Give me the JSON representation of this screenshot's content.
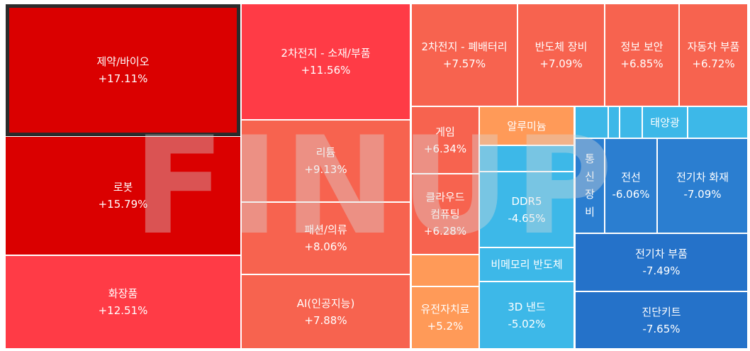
{
  "chart_data": {
    "type": "treemap",
    "colors": {
      "up_strong": "#DA0000",
      "up_mid": "#FF3B46",
      "up_soft": "#F7634F",
      "up_light": "#FF9A58",
      "down_light": "#3DB8E8",
      "down_mid": "#2B7ED0",
      "down_strong": "#2572C9",
      "watermark": "#d9d9d9"
    },
    "watermark": "FINUP",
    "cells": [
      {
        "label": "제약/바이오",
        "value": "+17.11%",
        "change": 17.11,
        "selected": true
      },
      {
        "label": "로봇",
        "value": "+15.79%",
        "change": 15.79
      },
      {
        "label": "화장품",
        "value": "+12.51%",
        "change": 12.51
      },
      {
        "label": "2차전지 - 소재/부품",
        "value": "+11.56%",
        "change": 11.56
      },
      {
        "label": "리튬",
        "value": "+9.13%",
        "change": 9.13
      },
      {
        "label": "패션/의류",
        "value": "+8.06%",
        "change": 8.06
      },
      {
        "label": "AI(인공지능)",
        "value": "+7.88%",
        "change": 7.88
      },
      {
        "label": "2차전지 - 폐배터리",
        "value": "+7.57%",
        "change": 7.57
      },
      {
        "label": "반도체 장비",
        "value": "+7.09%",
        "change": 7.09
      },
      {
        "label": "정보 보안",
        "value": "+6.85%",
        "change": 6.85
      },
      {
        "label": "자동차 부품",
        "value": "+6.72%",
        "change": 6.72
      },
      {
        "label": "게임",
        "value": "+6.34%",
        "change": 6.34
      },
      {
        "label": "클라우드 컴퓨팅",
        "value": "+6.28%",
        "change": 6.28
      },
      {
        "label": "",
        "value": "",
        "change": null
      },
      {
        "label": "유전자치료",
        "value": "+5.2%",
        "change": 5.2
      },
      {
        "label": "알루미늄",
        "value": "",
        "change": null
      },
      {
        "label": "",
        "value": "",
        "change": null
      },
      {
        "label": "DDR5",
        "value": "-4.65%",
        "change": -4.65
      },
      {
        "label": "비메모리 반도체",
        "value": "",
        "change": null
      },
      {
        "label": "3D 낸드",
        "value": "-5.02%",
        "change": -5.02
      },
      {
        "label": "",
        "value": "",
        "change": null
      },
      {
        "label": "",
        "value": "",
        "change": null
      },
      {
        "label": "",
        "value": "",
        "change": null
      },
      {
        "label": "태양광",
        "value": "",
        "change": null
      },
      {
        "label": "",
        "value": "",
        "change": null
      },
      {
        "label": "통신장비",
        "value": "",
        "change": null
      },
      {
        "label": "전선",
        "value": "-6.06%",
        "change": -6.06
      },
      {
        "label": "전기차 화재",
        "value": "-7.09%",
        "change": -7.09
      },
      {
        "label": "전기차 부품",
        "value": "-7.49%",
        "change": -7.49
      },
      {
        "label": "진단키트",
        "value": "-7.65%",
        "change": -7.65
      }
    ]
  }
}
